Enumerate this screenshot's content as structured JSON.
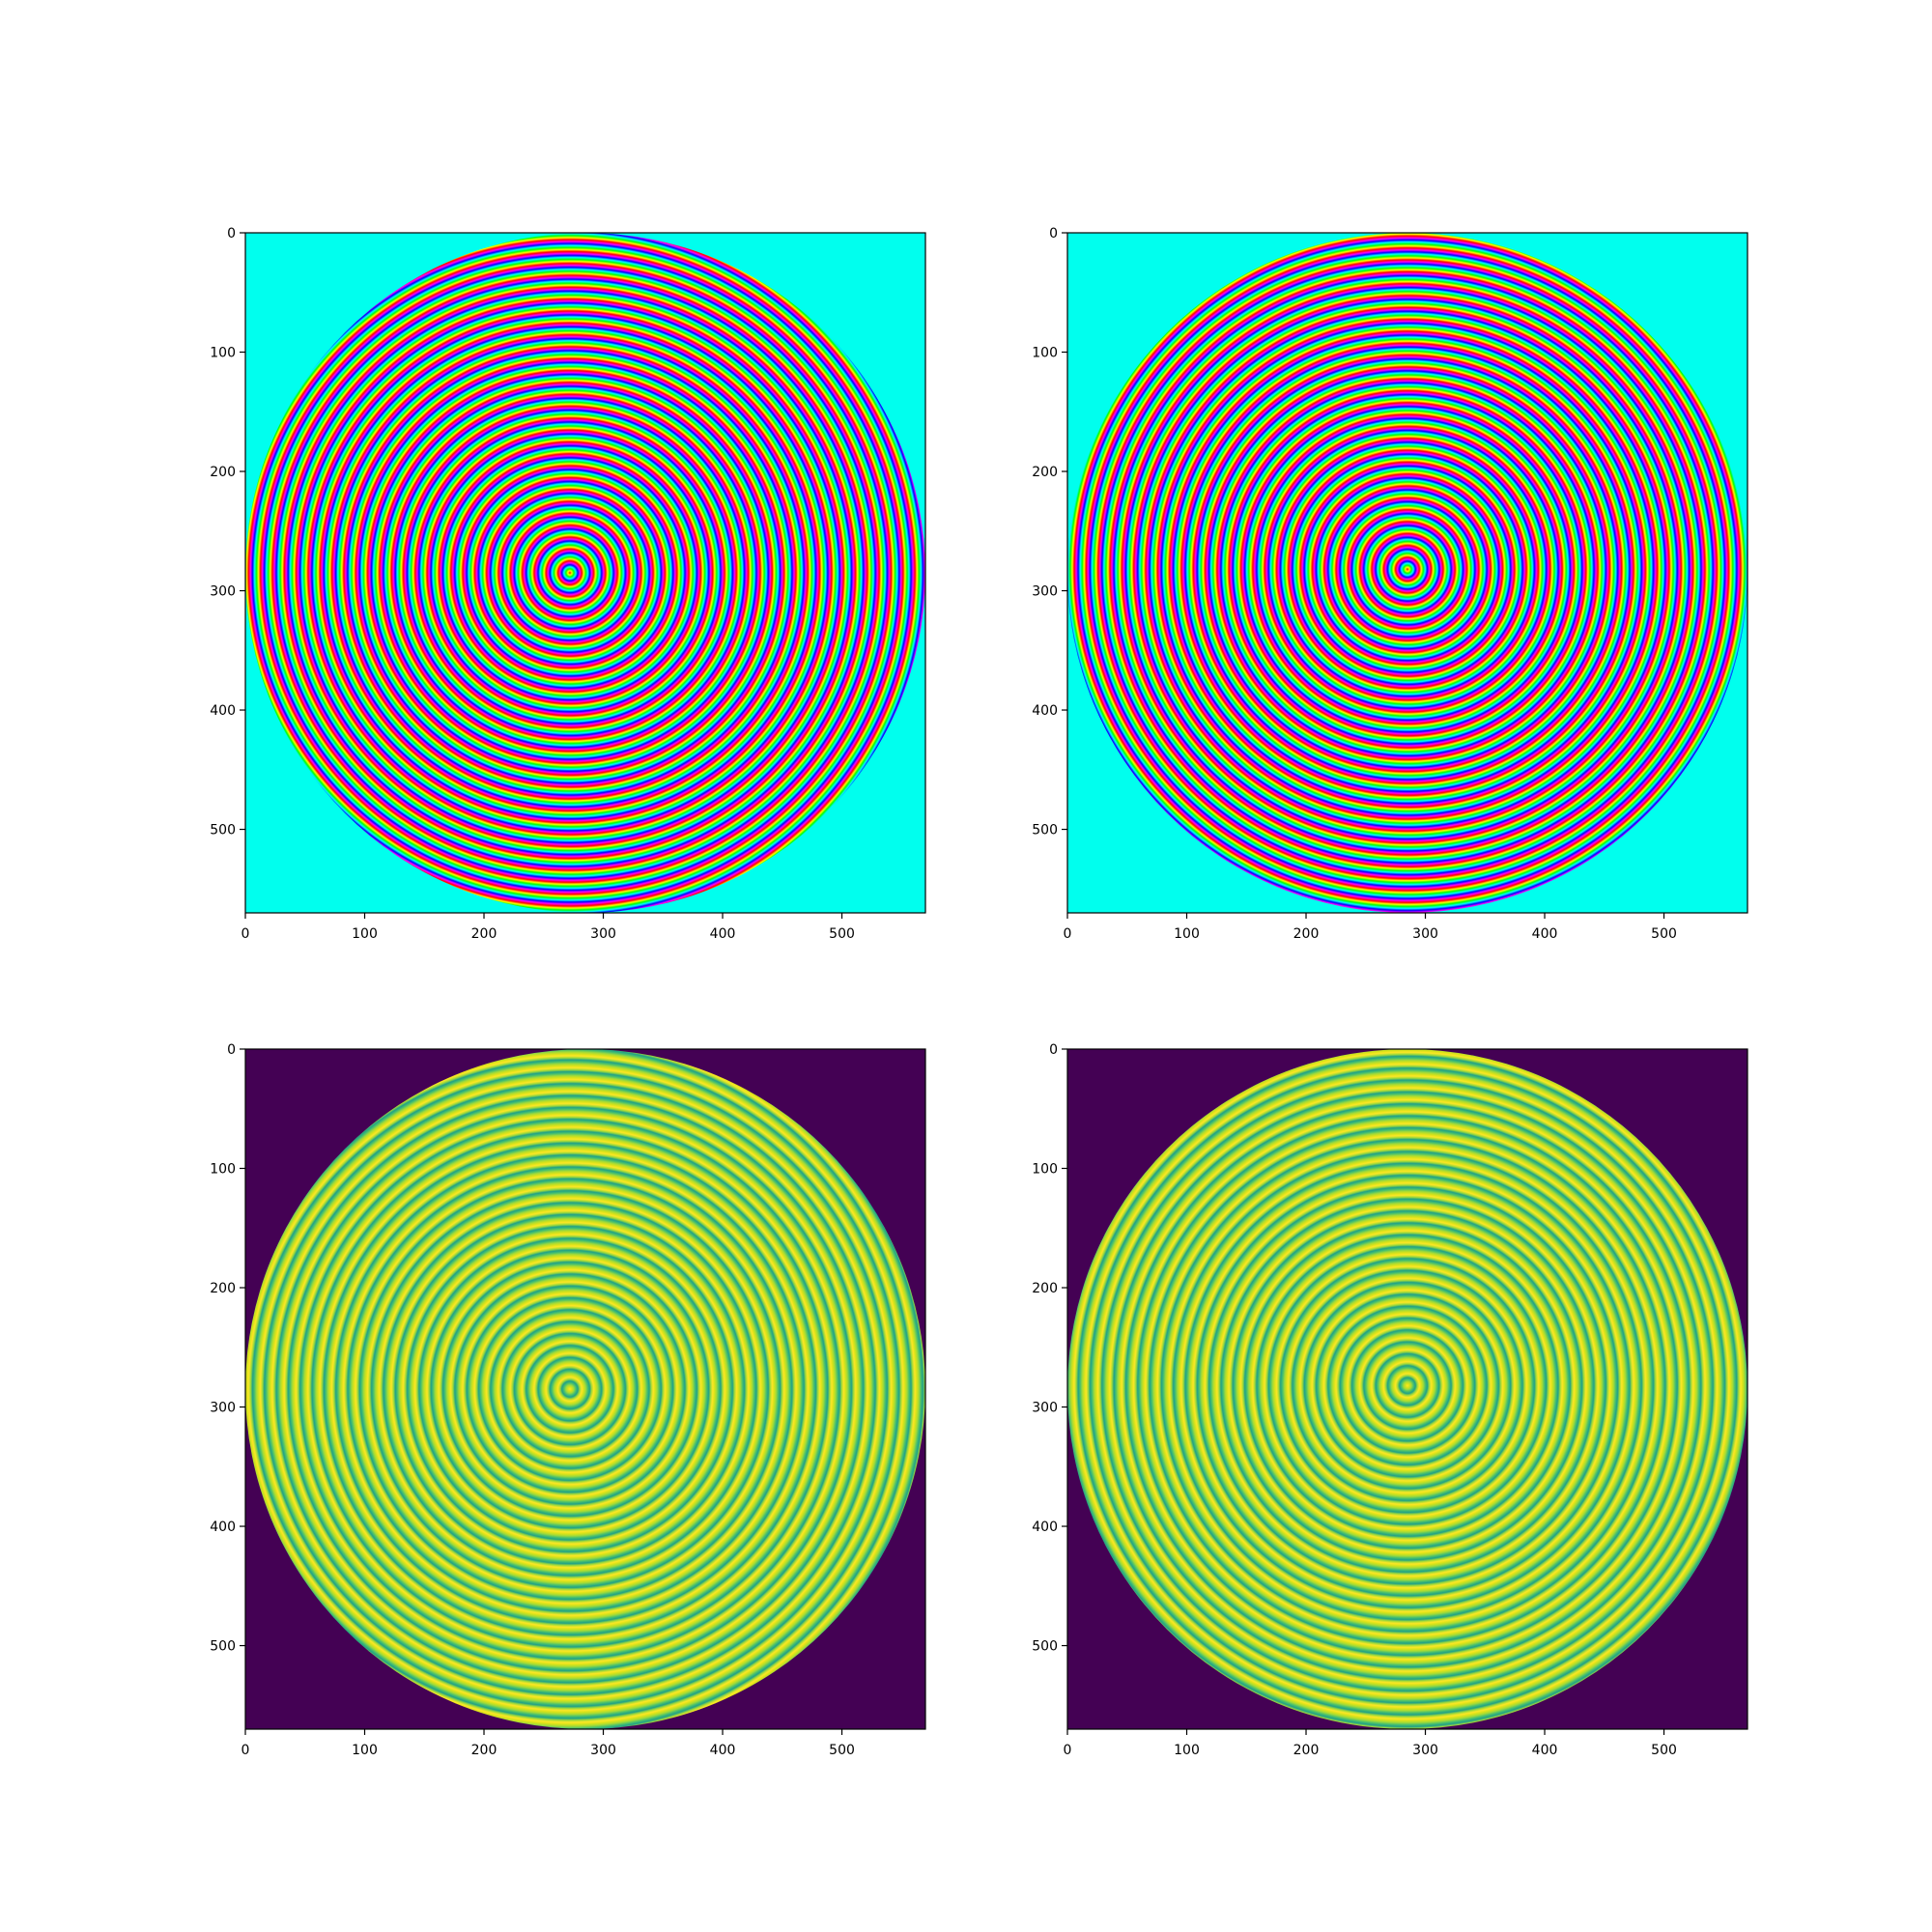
{
  "chart_data": [
    {
      "type": "heatmap",
      "panel": "top-left",
      "colormap": "hsv",
      "background_color": "#00FFEE",
      "xlim": [
        0,
        570
      ],
      "ylim": [
        570,
        0
      ],
      "x_ticks": [
        "0",
        "100",
        "200",
        "300",
        "400",
        "500"
      ],
      "y_ticks": [
        "0",
        "100",
        "200",
        "300",
        "400",
        "500"
      ],
      "circle": {
        "cx": 285,
        "cy": 285,
        "r": 285
      },
      "pattern_center": {
        "x": 272,
        "y": 285
      },
      "ring_count": 30,
      "grid": false
    },
    {
      "type": "heatmap",
      "panel": "top-right",
      "colormap": "hsv",
      "background_color": "#00FFEE",
      "xlim": [
        0,
        570
      ],
      "ylim": [
        570,
        0
      ],
      "x_ticks": [
        "0",
        "100",
        "200",
        "300",
        "400",
        "500"
      ],
      "y_ticks": [
        "0",
        "100",
        "200",
        "300",
        "400",
        "500"
      ],
      "circle": {
        "cx": 285,
        "cy": 285,
        "r": 285
      },
      "pattern_center": {
        "x": 285,
        "y": 282
      },
      "ring_count": 30,
      "grid": false
    },
    {
      "type": "heatmap",
      "panel": "bottom-left",
      "colormap": "viridis",
      "background_color": "#440154",
      "xlim": [
        0,
        570
      ],
      "ylim": [
        570,
        0
      ],
      "x_ticks": [
        "0",
        "100",
        "200",
        "300",
        "400",
        "500"
      ],
      "y_ticks": [
        "0",
        "100",
        "200",
        "300",
        "400",
        "500"
      ],
      "circle": {
        "cx": 285,
        "cy": 285,
        "r": 285
      },
      "pattern_center": {
        "x": 272,
        "y": 285
      },
      "ring_count": 30,
      "grid": false
    },
    {
      "type": "heatmap",
      "panel": "bottom-right",
      "colormap": "viridis",
      "background_color": "#440154",
      "xlim": [
        0,
        570
      ],
      "ylim": [
        570,
        0
      ],
      "x_ticks": [
        "0",
        "100",
        "200",
        "300",
        "400",
        "500"
      ],
      "y_ticks": [
        "0",
        "100",
        "200",
        "300",
        "400",
        "500"
      ],
      "circle": {
        "cx": 285,
        "cy": 285,
        "r": 285
      },
      "pattern_center": {
        "x": 285,
        "y": 282
      },
      "ring_count": 30,
      "grid": false
    }
  ]
}
